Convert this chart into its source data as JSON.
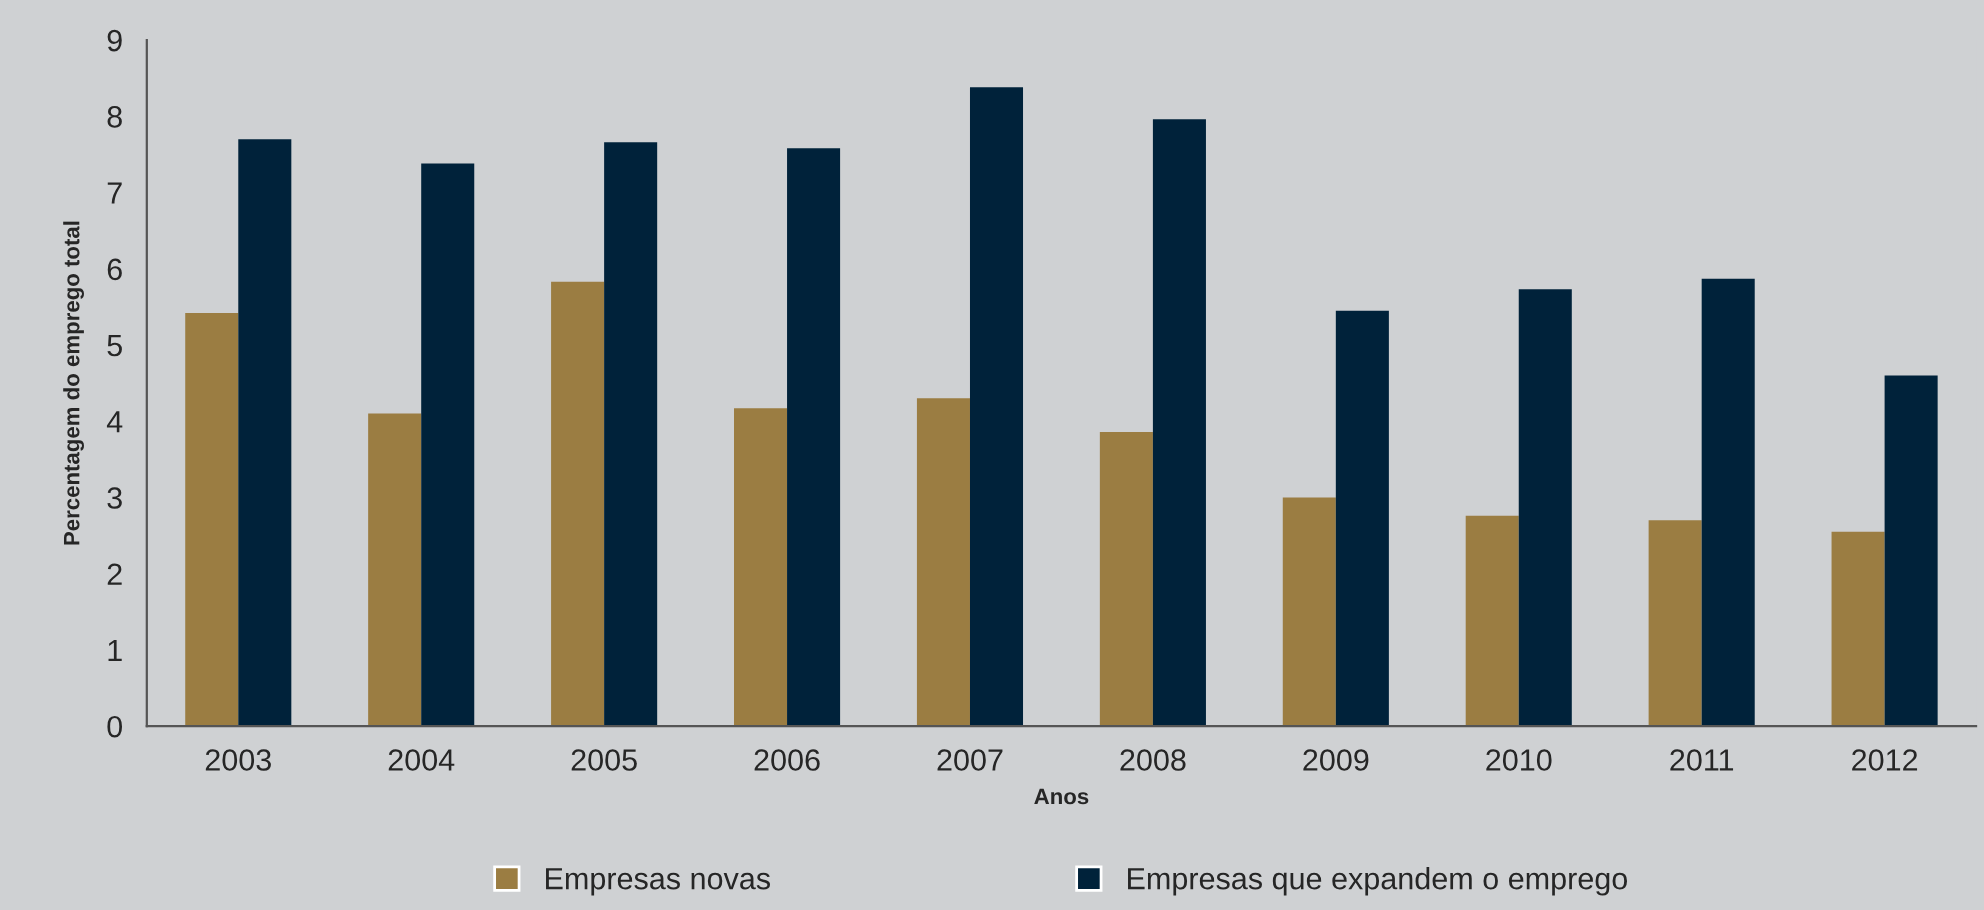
{
  "chart_data": {
    "type": "bar",
    "xlabel": "Anos",
    "ylabel": "Percentagem do emprego total",
    "categories": [
      "2003",
      "2004",
      "2005",
      "2006",
      "2007",
      "2008",
      "2009",
      "2010",
      "2011",
      "2012"
    ],
    "series": [
      {
        "name": "Empresas novas",
        "color": "#9b7d42",
        "values": [
          5.42,
          4.1,
          5.83,
          4.17,
          4.3,
          3.86,
          3.0,
          2.76,
          2.7,
          2.55
        ]
      },
      {
        "name": "Empresas que expandem o emprego",
        "color": "#00223a",
        "values": [
          7.7,
          7.38,
          7.66,
          7.58,
          8.38,
          7.96,
          5.45,
          5.73,
          5.87,
          4.6
        ]
      }
    ],
    "ylim": [
      0,
      9
    ],
    "yticks": [
      0,
      1,
      2,
      3,
      4,
      5,
      6,
      7,
      8,
      9
    ],
    "grid": false,
    "legend": "bottom"
  }
}
